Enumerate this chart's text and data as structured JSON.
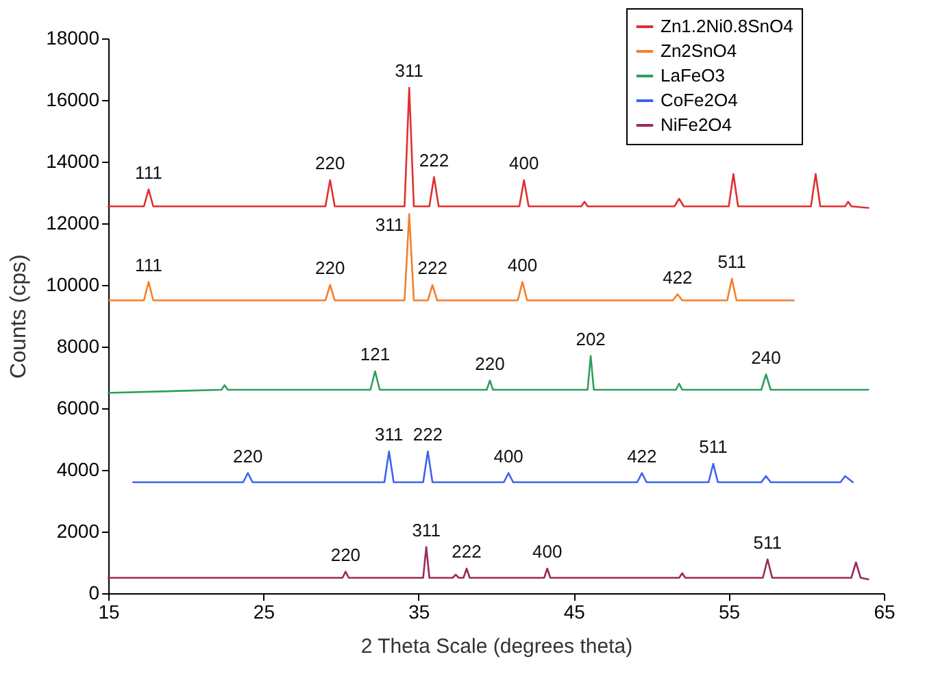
{
  "chart_data": {
    "type": "line",
    "xlabel": "2 Theta Scale (degrees theta)",
    "ylabel": "Counts (cps)",
    "xlim": [
      15,
      65
    ],
    "xticks": [
      15,
      25,
      35,
      45,
      55,
      65
    ],
    "ylim": [
      0,
      18000
    ],
    "yticks": [
      0,
      2000,
      4000,
      6000,
      8000,
      10000,
      12000,
      14000,
      16000,
      18000
    ],
    "legend": "top right",
    "grid": false,
    "marker": "none",
    "line_style": "solid",
    "series": [
      {
        "name": "Zn1.2Ni0.8SnO4",
        "color": "#e0302e",
        "x": [
          15,
          17.3,
          17.6,
          17.9,
          29,
          29.3,
          29.6,
          34.1,
          34.4,
          34.7,
          35.7,
          36,
          36.3,
          41.5,
          41.8,
          42.1,
          45.5,
          45.7,
          45.9,
          51.5,
          51.8,
          52.1,
          55,
          55.3,
          55.6,
          60.3,
          60.6,
          60.9,
          62.5,
          62.7,
          62.9,
          64
        ],
        "values": [
          12550,
          12550,
          13100,
          12550,
          12550,
          13400,
          12550,
          12550,
          16400,
          12550,
          12550,
          13500,
          12550,
          12550,
          13400,
          12550,
          12550,
          12700,
          12550,
          12550,
          12800,
          12550,
          12550,
          13600,
          12550,
          12550,
          13600,
          12550,
          12550,
          12700,
          12550,
          12500
        ]
      },
      {
        "name": "Zn2SnO4",
        "color": "#f47f2a",
        "x": [
          15,
          17.3,
          17.6,
          17.9,
          29,
          29.3,
          29.6,
          34.1,
          34.4,
          34.7,
          35.6,
          35.9,
          36.2,
          41.4,
          41.7,
          42,
          51.4,
          51.7,
          52,
          54.9,
          55.2,
          55.5,
          59.2
        ],
        "values": [
          9500,
          9500,
          10100,
          9500,
          9500,
          10000,
          9500,
          9500,
          12300,
          9500,
          9500,
          10000,
          9500,
          9500,
          10100,
          9500,
          9500,
          9700,
          9500,
          9500,
          10200,
          9500,
          9500
        ]
      },
      {
        "name": "LaFeO3",
        "color": "#2e9e5e",
        "x": [
          15,
          22.3,
          22.5,
          22.7,
          31.9,
          32.2,
          32.5,
          39.4,
          39.6,
          39.8,
          45.9,
          46.1,
          46.3,
          51.6,
          51.8,
          52,
          57.1,
          57.4,
          57.7,
          64
        ],
        "values": [
          6500,
          6600,
          6750,
          6600,
          6600,
          7200,
          6600,
          6600,
          6900,
          6600,
          6600,
          7700,
          6600,
          6600,
          6800,
          6600,
          6600,
          7100,
          6600,
          6600
        ]
      },
      {
        "name": "CoFe2O4",
        "color": "#3c64f0",
        "x": [
          16.6,
          23.7,
          24,
          24.3,
          32.8,
          33.1,
          33.4,
          35.3,
          35.6,
          35.9,
          40.5,
          40.8,
          41.1,
          49.1,
          49.4,
          49.7,
          53.7,
          54,
          54.3,
          57.1,
          57.4,
          57.7,
          62.2,
          62.5,
          63
        ],
        "values": [
          3600,
          3600,
          3900,
          3600,
          3600,
          4600,
          3600,
          3600,
          4600,
          3600,
          3600,
          3900,
          3600,
          3600,
          3900,
          3600,
          3600,
          4200,
          3600,
          3600,
          3800,
          3600,
          3600,
          3800,
          3600
        ]
      },
      {
        "name": "NiFe2O4",
        "color": "#9a2a5e",
        "x": [
          15,
          30.1,
          30.3,
          30.5,
          35.3,
          35.5,
          35.7,
          37.2,
          37.4,
          37.6,
          37.9,
          38.1,
          38.3,
          43.1,
          43.3,
          43.5,
          51.8,
          52,
          52.2,
          57.2,
          57.5,
          57.8,
          62.9,
          63.2,
          63.5,
          64
        ],
        "values": [
          500,
          500,
          700,
          500,
          500,
          1500,
          500,
          500,
          600,
          500,
          500,
          800,
          500,
          500,
          800,
          500,
          500,
          650,
          500,
          500,
          1100,
          500,
          500,
          1000,
          500,
          450
        ]
      }
    ],
    "annotations": [
      {
        "text": "111",
        "x": 17.6,
        "y": 13100
      },
      {
        "text": "220",
        "x": 29.3,
        "y": 13400
      },
      {
        "text": "311",
        "x": 34.4,
        "y": 16400
      },
      {
        "text": "222",
        "x": 36,
        "y": 13500
      },
      {
        "text": "400",
        "x": 41.8,
        "y": 13400
      },
      {
        "text": "111",
        "x": 17.6,
        "y": 10100
      },
      {
        "text": "220",
        "x": 29.3,
        "y": 10000
      },
      {
        "text": "311",
        "x": 34.4,
        "y": 12300
      },
      {
        "text": "222",
        "x": 35.9,
        "y": 10000
      },
      {
        "text": "400",
        "x": 41.7,
        "y": 10100
      },
      {
        "text": "422",
        "x": 51.7,
        "y": 9700
      },
      {
        "text": "511",
        "x": 55.2,
        "y": 10200
      },
      {
        "text": "121",
        "x": 32.2,
        "y": 7200
      },
      {
        "text": "220",
        "x": 39.6,
        "y": 6900
      },
      {
        "text": "202",
        "x": 46.1,
        "y": 7700
      },
      {
        "text": "240",
        "x": 57.4,
        "y": 7100
      },
      {
        "text": "220",
        "x": 24,
        "y": 3900
      },
      {
        "text": "311",
        "x": 33.1,
        "y": 4600
      },
      {
        "text": "222",
        "x": 35.6,
        "y": 4600
      },
      {
        "text": "400",
        "x": 40.8,
        "y": 3900
      },
      {
        "text": "422",
        "x": 49.4,
        "y": 3900
      },
      {
        "text": "511",
        "x": 54,
        "y": 4200
      },
      {
        "text": "220",
        "x": 30.3,
        "y": 700
      },
      {
        "text": "311",
        "x": 35.5,
        "y": 1500
      },
      {
        "text": "222",
        "x": 38.1,
        "y": 800
      },
      {
        "text": "400",
        "x": 43.3,
        "y": 800
      },
      {
        "text": "511",
        "x": 57.5,
        "y": 1100
      }
    ]
  }
}
